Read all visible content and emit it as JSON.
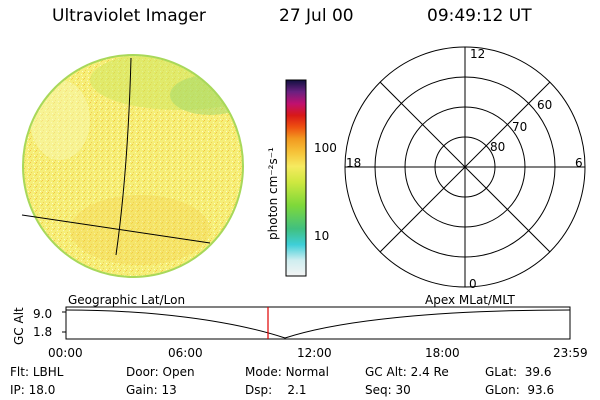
{
  "header": {
    "instrument": "Ultraviolet Imager",
    "date": "27 Jul 00",
    "time": "09:49:12 UT"
  },
  "colorbar": {
    "unit_label": "photon cm⁻²s⁻¹",
    "ticks": [
      "100",
      "10"
    ]
  },
  "polar_plot": {
    "mlt_labels": {
      "top": "12",
      "bottom": "0",
      "left": "18",
      "right": "6"
    },
    "lat_labels": [
      "60",
      "70",
      "80"
    ]
  },
  "orbit_plot": {
    "y_axis_label": "GC Alt",
    "y_ticks": [
      "9.0",
      "1.8"
    ],
    "left_title": "Geographic Lat/Lon",
    "right_title": "Apex MLat/MLT",
    "x_ticks": [
      "00:00",
      "06:00",
      "12:00",
      "18:00",
      "23:59"
    ],
    "marker_color": "#e00000"
  },
  "status": {
    "row1": [
      {
        "label": "Flt:",
        "value": "LBHL"
      },
      {
        "label": "Door:",
        "value": "Open"
      },
      {
        "label": "Mode:",
        "value": "Normal"
      },
      {
        "label": "GC Alt:",
        "value": "2.4 Re"
      },
      {
        "label": "GLat:",
        "value": "39.6"
      }
    ],
    "row2": [
      {
        "label": "IP:",
        "value": "18.0"
      },
      {
        "label": "Gain:",
        "value": "13"
      },
      {
        "label": "Dsp:",
        "value": "2.1"
      },
      {
        "label": "Seq:",
        "value": "30"
      },
      {
        "label": "GLon:",
        "value": "93.6"
      }
    ]
  }
}
